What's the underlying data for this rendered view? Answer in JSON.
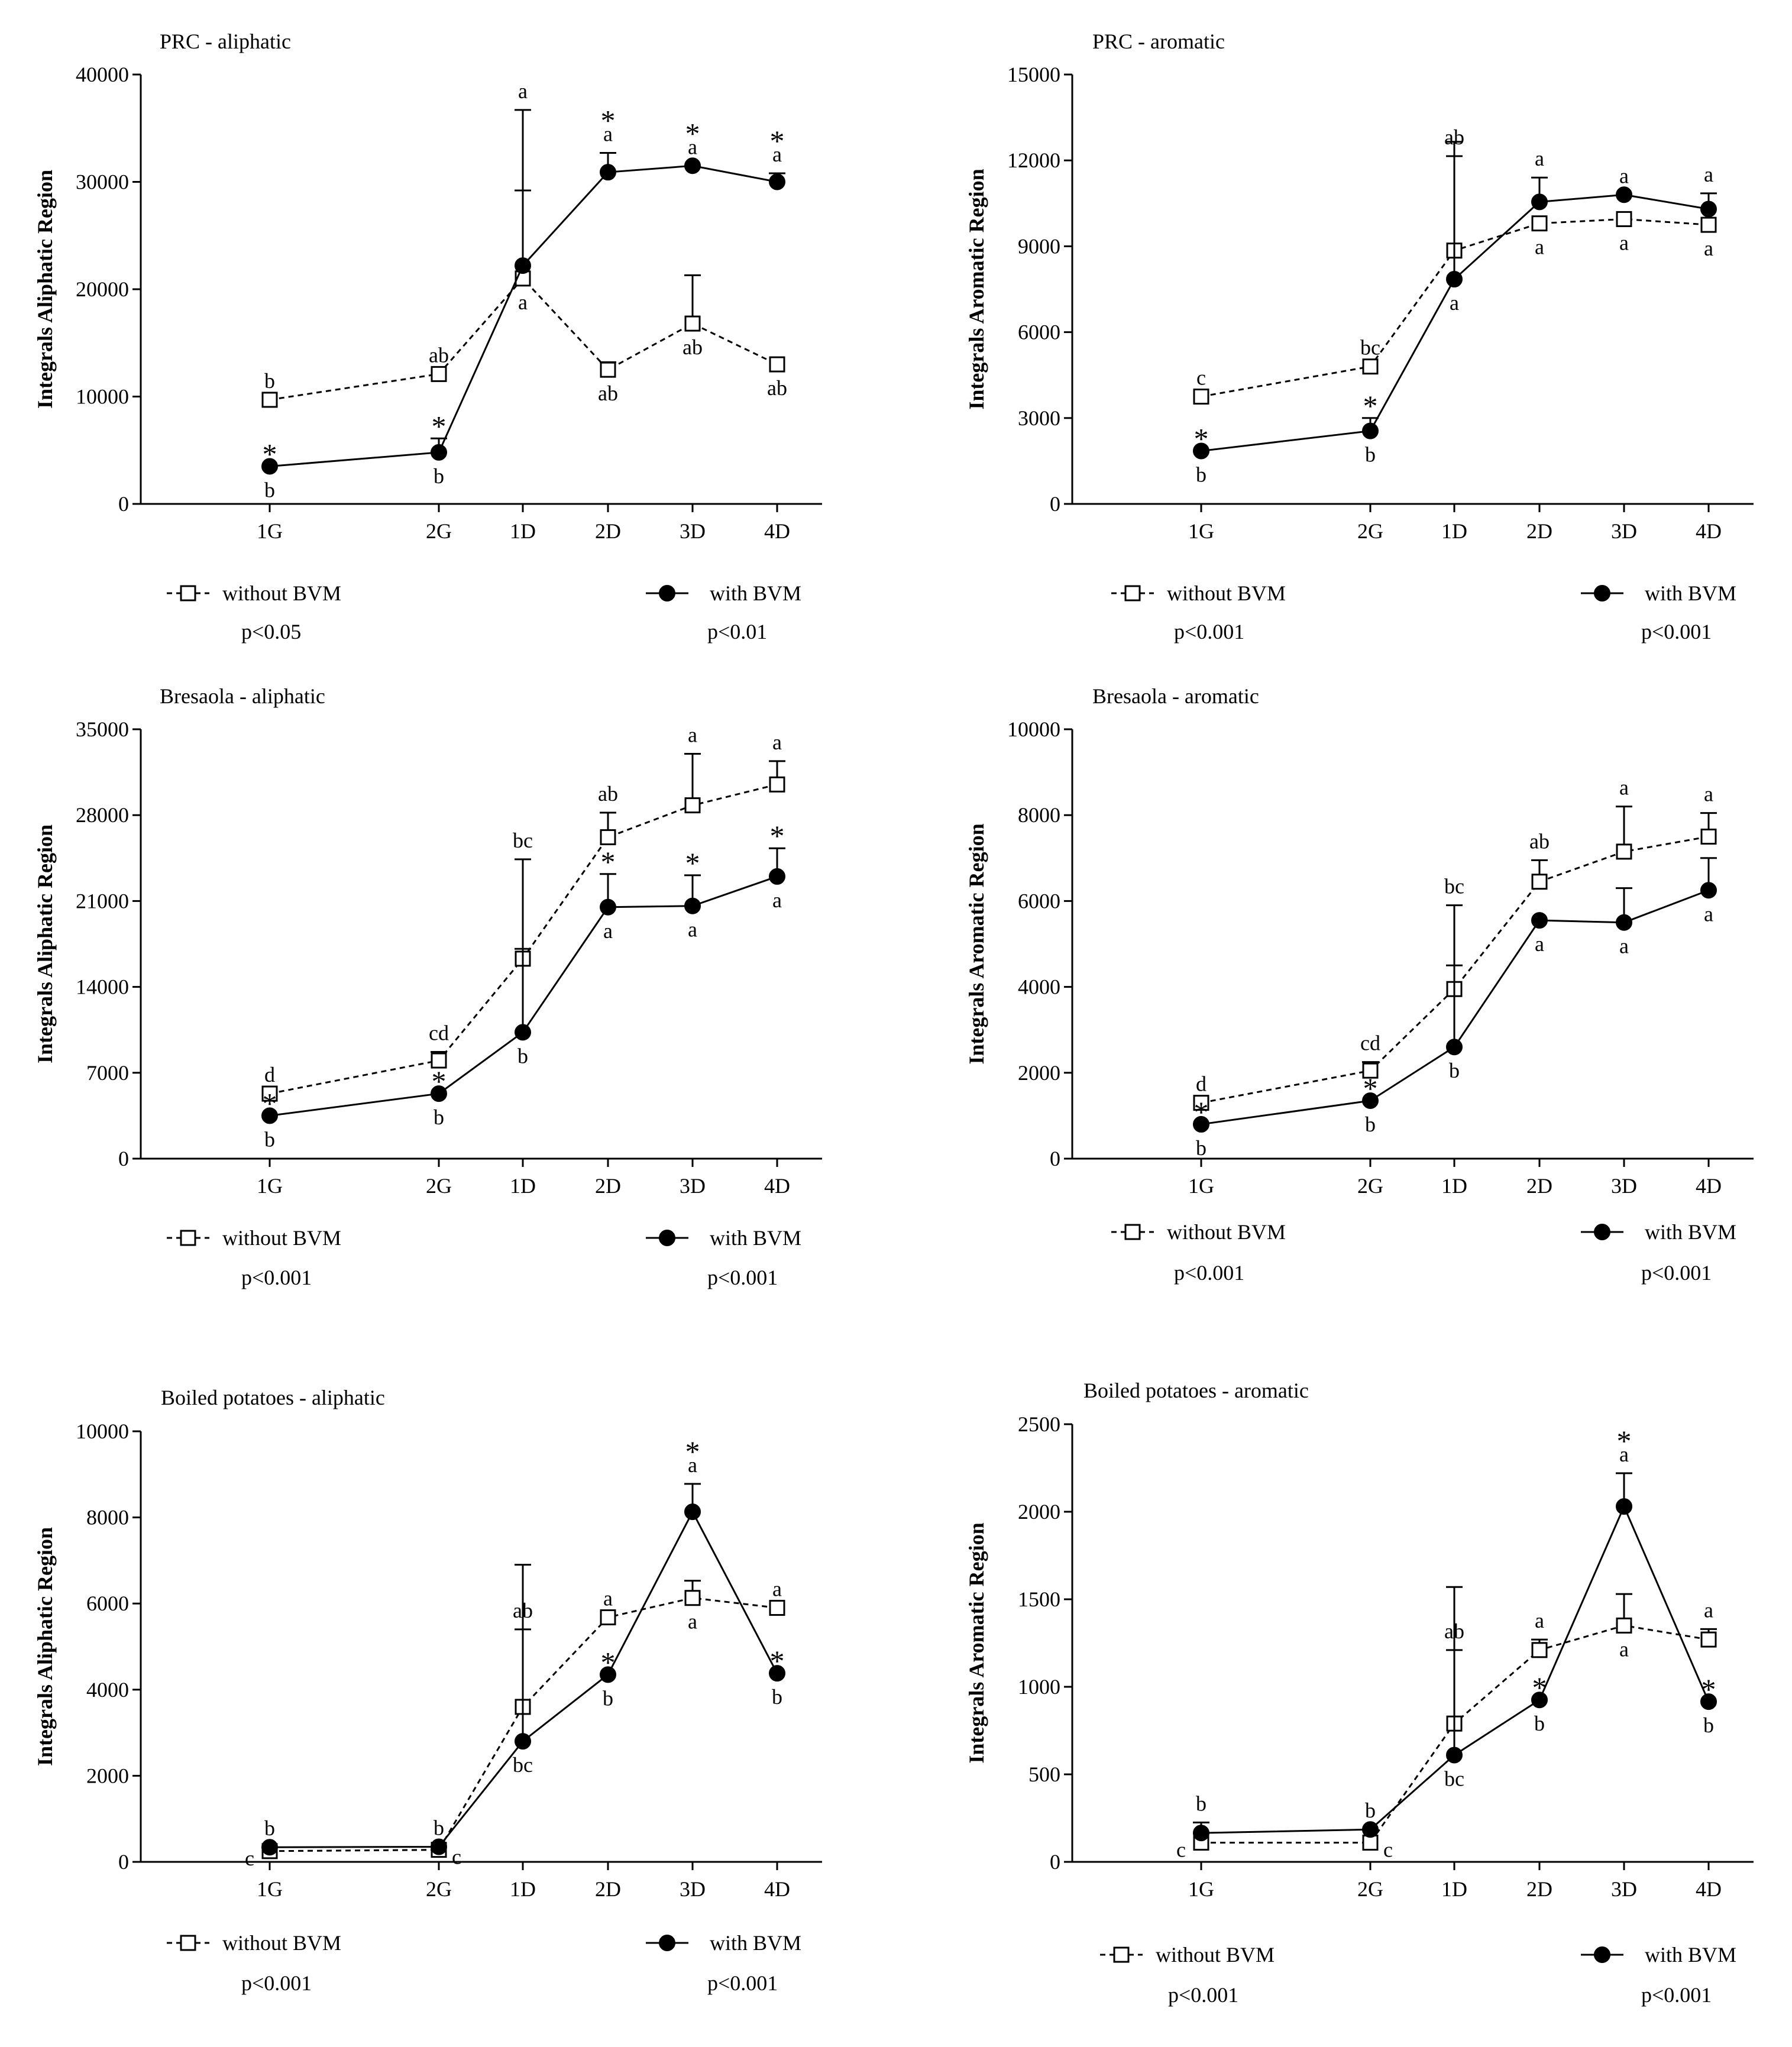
{
  "chart_data": [
    {
      "type": "line",
      "title": "PRC - aliphatic",
      "ylabel": "Integrals Aliphatic Region",
      "xlabel": "",
      "categories": [
        "1G",
        "2G",
        "1D",
        "2D",
        "3D",
        "4D"
      ],
      "ylim": [
        0,
        40000
      ],
      "yticks": [
        "0",
        "10000",
        "20000",
        "30000",
        "40000"
      ],
      "series": [
        {
          "name": "without BVM",
          "marker": "square-open",
          "line": "dashed",
          "values": [
            9700,
            12100,
            21000,
            12500,
            16800,
            13000
          ],
          "errors": [
            0,
            0,
            8200,
            700,
            4500,
            0
          ],
          "letters": [
            "b",
            "ab",
            "a",
            "ab",
            "ab",
            "ab"
          ],
          "letter_pos": [
            "above",
            "above",
            "below",
            "below",
            "below",
            "below"
          ],
          "stars": [
            false,
            false,
            false,
            false,
            false,
            false
          ]
        },
        {
          "name": "with BVM",
          "marker": "circle-filled",
          "line": "solid",
          "values": [
            3500,
            4800,
            22200,
            30900,
            31500,
            30000
          ],
          "errors": [
            0,
            1300,
            14500,
            1800,
            0,
            800
          ],
          "letters": [
            "b",
            "b",
            "a",
            "a",
            "a",
            "a"
          ],
          "letter_pos": [
            "below",
            "below",
            "above",
            "above",
            "above",
            "above"
          ],
          "stars": [
            true,
            true,
            false,
            true,
            true,
            true
          ]
        }
      ],
      "legend": {
        "left": "without BVM",
        "right": "with BVM",
        "left_p": "p<0.05",
        "right_p": "p<0.01"
      }
    },
    {
      "type": "line",
      "title": "PRC - aromatic",
      "ylabel": "Integrals Aromatic Region",
      "xlabel": "",
      "categories": [
        "1G",
        "2G",
        "1D",
        "2D",
        "3D",
        "4D"
      ],
      "ylim": [
        0,
        15000
      ],
      "yticks": [
        "0",
        "3000",
        "6000",
        "9000",
        "12000",
        "15000"
      ],
      "series": [
        {
          "name": "without BVM",
          "marker": "square-open",
          "line": "dashed",
          "values": [
            3750,
            4800,
            8850,
            9800,
            9950,
            9750
          ],
          "errors": [
            0,
            0,
            3300,
            0,
            0,
            0
          ],
          "letters": [
            "c",
            "bc",
            "ab",
            "a",
            "a",
            "a"
          ],
          "letter_pos": [
            "above",
            "above",
            "above",
            "below",
            "below",
            "below"
          ],
          "stars": [
            false,
            false,
            false,
            false,
            false,
            false
          ]
        },
        {
          "name": "with BVM",
          "marker": "circle-filled",
          "line": "solid",
          "values": [
            1850,
            2550,
            7850,
            10550,
            10800,
            10300
          ],
          "errors": [
            0,
            450,
            4800,
            850,
            0,
            550
          ],
          "letters": [
            "b",
            "b",
            "a",
            "a",
            "a",
            "a"
          ],
          "letter_pos": [
            "below",
            "below",
            "below",
            "above",
            "above",
            "above"
          ],
          "stars": [
            true,
            true,
            false,
            false,
            false,
            false
          ]
        }
      ],
      "legend": {
        "left": "without BVM",
        "right": "with BVM",
        "left_p": "p<0.001",
        "right_p": "p<0.001"
      }
    },
    {
      "type": "line",
      "title": "Bresaola - aliphatic",
      "ylabel": "Integrals Aliphatic Region",
      "xlabel": "",
      "categories": [
        "1G",
        "2G",
        "1D",
        "2D",
        "3D",
        "4D"
      ],
      "ylim": [
        0,
        35000
      ],
      "yticks": [
        "0",
        "7000",
        "14000",
        "21000",
        "28000",
        "35000"
      ],
      "series": [
        {
          "name": "without BVM",
          "marker": "square-open",
          "line": "dashed",
          "values": [
            5300,
            8000,
            16300,
            26200,
            28800,
            30500
          ],
          "errors": [
            0,
            700,
            8100,
            2000,
            4200,
            1900
          ],
          "letters": [
            "d",
            "cd",
            "bc",
            "ab",
            "a",
            "a"
          ],
          "letter_pos": [
            "above",
            "above",
            "above",
            "above",
            "above",
            "above"
          ],
          "stars": [
            false,
            false,
            false,
            false,
            false,
            false
          ]
        },
        {
          "name": "with BVM",
          "marker": "circle-filled",
          "line": "solid",
          "values": [
            3500,
            5300,
            10300,
            20500,
            20600,
            23000
          ],
          "errors": [
            0,
            0,
            6800,
            2700,
            2500,
            2300
          ],
          "letters": [
            "b",
            "b",
            "b",
            "a",
            "a",
            "a"
          ],
          "letter_pos": [
            "below",
            "below",
            "below",
            "below",
            "below",
            "below"
          ],
          "stars": [
            true,
            true,
            false,
            true,
            true,
            true
          ]
        }
      ],
      "legend": {
        "left": "without BVM",
        "right": "with BVM",
        "left_p": "p<0.001",
        "right_p": "p<0.001"
      }
    },
    {
      "type": "line",
      "title": "Bresaola - aromatic",
      "ylabel": "Integrals Aromatic Region",
      "xlabel": "",
      "categories": [
        "1G",
        "2G",
        "1D",
        "2D",
        "3D",
        "4D"
      ],
      "ylim": [
        0,
        10000
      ],
      "yticks": [
        "0",
        "2000",
        "4000",
        "6000",
        "8000",
        "10000"
      ],
      "series": [
        {
          "name": "without BVM",
          "marker": "square-open",
          "line": "dashed",
          "values": [
            1300,
            2050,
            3950,
            6450,
            7150,
            7500
          ],
          "errors": [
            0,
            200,
            1950,
            500,
            1050,
            550
          ],
          "letters": [
            "d",
            "cd",
            "bc",
            "ab",
            "a",
            "a"
          ],
          "letter_pos": [
            "above",
            "above",
            "above",
            "above",
            "above",
            "above"
          ],
          "stars": [
            false,
            false,
            false,
            false,
            false,
            false
          ]
        },
        {
          "name": "with BVM",
          "marker": "circle-filled",
          "line": "solid",
          "values": [
            800,
            1350,
            2600,
            5550,
            5500,
            6250
          ],
          "errors": [
            0,
            0,
            1900,
            0,
            800,
            750
          ],
          "letters": [
            "b",
            "b",
            "b",
            "a",
            "a",
            "a"
          ],
          "letter_pos": [
            "below",
            "below",
            "below",
            "below",
            "below",
            "below"
          ],
          "stars": [
            true,
            true,
            false,
            false,
            false,
            false
          ]
        }
      ],
      "legend": {
        "left": "without BVM",
        "right": "with BVM",
        "left_p": "p<0.001",
        "right_p": "p<0.001"
      }
    },
    {
      "type": "line",
      "title": "Boiled potatoes - aliphatic",
      "ylabel": "Integrals Aliphatic Region",
      "xlabel": "",
      "categories": [
        "1G",
        "2G",
        "1D",
        "2D",
        "3D",
        "4D"
      ],
      "ylim": [
        0,
        10000
      ],
      "yticks": [
        "0",
        "2000",
        "4000",
        "6000",
        "8000",
        "10000"
      ],
      "series": [
        {
          "name": "without BVM",
          "marker": "square-open",
          "line": "dashed",
          "values": [
            250,
            280,
            3600,
            5680,
            6130,
            5900
          ],
          "errors": [
            0,
            0,
            1800,
            0,
            400,
            0
          ],
          "letters": [
            "c",
            "c",
            "ab",
            "a",
            "a",
            "a"
          ],
          "letter_pos": [
            "left",
            "right",
            "above",
            "above",
            "below",
            "above"
          ],
          "stars": [
            false,
            false,
            false,
            false,
            false,
            false
          ]
        },
        {
          "name": "with BVM",
          "marker": "circle-filled",
          "line": "solid",
          "values": [
            340,
            350,
            2800,
            4350,
            8130,
            4380
          ],
          "errors": [
            0,
            0,
            4100,
            0,
            650,
            0
          ],
          "letters": [
            "b",
            "b",
            "bc",
            "b",
            "a",
            "b"
          ],
          "letter_pos": [
            "above",
            "above",
            "below",
            "below",
            "above",
            "below"
          ],
          "stars": [
            false,
            false,
            false,
            true,
            true,
            true
          ]
        }
      ],
      "legend": {
        "left": "without BVM",
        "right": "with BVM",
        "left_p": "p<0.001",
        "right_p": "p<0.001"
      }
    },
    {
      "type": "line",
      "title": "Boiled potatoes - aromatic",
      "ylabel": "Integrals Aromatic Region",
      "xlabel": "",
      "categories": [
        "1G",
        "2G",
        "1D",
        "2D",
        "3D",
        "4D"
      ],
      "ylim": [
        0,
        2500
      ],
      "yticks": [
        "0",
        "500",
        "1000",
        "1500",
        "2000",
        "2500"
      ],
      "series": [
        {
          "name": "without BVM",
          "marker": "square-open",
          "line": "dashed",
          "values": [
            110,
            110,
            790,
            1210,
            1350,
            1270
          ],
          "errors": [
            0,
            0,
            420,
            60,
            180,
            60
          ],
          "letters": [
            "c",
            "c",
            "ab",
            "a",
            "a",
            "a"
          ],
          "letter_pos": [
            "left",
            "right",
            "above",
            "above",
            "below",
            "above"
          ],
          "stars": [
            false,
            false,
            false,
            false,
            false,
            false
          ]
        },
        {
          "name": "with BVM",
          "marker": "circle-filled",
          "line": "solid",
          "values": [
            165,
            185,
            610,
            925,
            2030,
            915
          ],
          "errors": [
            60,
            0,
            960,
            0,
            190,
            0
          ],
          "letters": [
            "b",
            "b",
            "bc",
            "b",
            "a",
            "b"
          ],
          "letter_pos": [
            "above",
            "above",
            "below",
            "below",
            "above",
            "below"
          ],
          "stars": [
            false,
            false,
            false,
            true,
            true,
            true
          ]
        }
      ],
      "legend": {
        "left": "without BVM",
        "right": "with BVM",
        "left_p": "p<0.001",
        "right_p": "p<0.001"
      }
    }
  ]
}
